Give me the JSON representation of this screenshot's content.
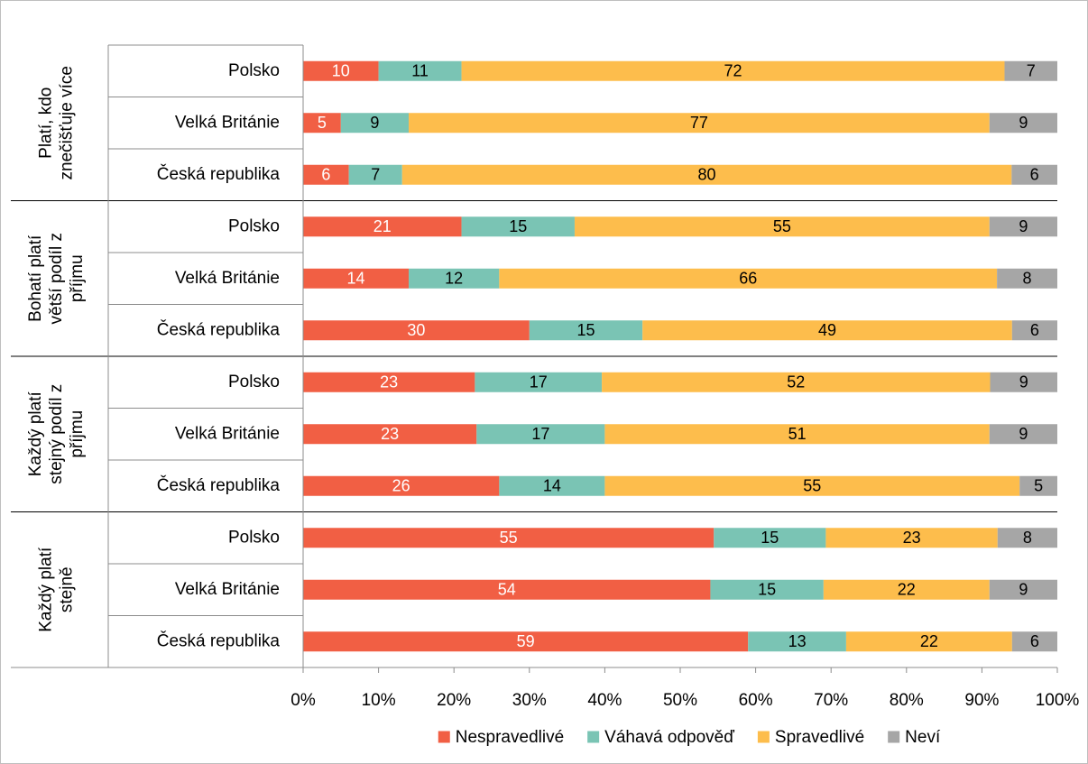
{
  "chart_data": {
    "type": "bar",
    "orientation": "horizontal",
    "stacked": true,
    "percent_scale": true,
    "title": "",
    "xlabel": "",
    "ylabel": "",
    "xlim": [
      0,
      100
    ],
    "x_ticks": [
      "0%",
      "10%",
      "20%",
      "30%",
      "40%",
      "50%",
      "60%",
      "70%",
      "80%",
      "90%",
      "100%"
    ],
    "legend_position": "bottom",
    "grid": false,
    "series": [
      {
        "name": "Nespravedlivé",
        "color": "#f15f44",
        "label_color": "#ffffff"
      },
      {
        "name": "Váhavá odpověď",
        "color": "#7ac4b4",
        "label_color": "#000000"
      },
      {
        "name": "Spravedlivé",
        "color": "#fdbd4c",
        "label_color": "#000000"
      },
      {
        "name": "Neví",
        "color": "#a6a6a6",
        "label_color": "#000000"
      }
    ],
    "groups": [
      {
        "label_lines": [
          "Platí, kdo",
          "znečišťuje více"
        ],
        "rows": [
          {
            "category": "Polsko",
            "values": [
              10,
              11,
              72,
              7
            ]
          },
          {
            "category": "Velká Británie",
            "values": [
              5,
              9,
              77,
              9
            ]
          },
          {
            "category": "Česká republika",
            "values": [
              6,
              7,
              80,
              6
            ]
          }
        ]
      },
      {
        "label_lines": [
          "Bohatí platí",
          "větší podíl z",
          "příjmu"
        ],
        "rows": [
          {
            "category": "Polsko",
            "values": [
              21,
              15,
              55,
              9
            ]
          },
          {
            "category": "Velká Británie",
            "values": [
              14,
              12,
              66,
              8
            ]
          },
          {
            "category": "Česká republika",
            "values": [
              30,
              15,
              49,
              6
            ]
          }
        ]
      },
      {
        "label_lines": [
          "Každý platí",
          "stejný podíl z",
          "příjmu"
        ],
        "rows": [
          {
            "category": "Polsko",
            "values": [
              23,
              17,
              52,
              9
            ]
          },
          {
            "category": "Velká Británie",
            "values": [
              23,
              17,
              51,
              9
            ]
          },
          {
            "category": "Česká republika",
            "values": [
              26,
              14,
              55,
              5
            ]
          }
        ]
      },
      {
        "label_lines": [
          "Každý platí",
          "stejně"
        ],
        "rows": [
          {
            "category": "Polsko",
            "values": [
              55,
              15,
              23,
              8
            ]
          },
          {
            "category": "Velká Británie",
            "values": [
              54,
              15,
              22,
              9
            ]
          },
          {
            "category": "Česká republika",
            "values": [
              59,
              13,
              22,
              6
            ]
          }
        ]
      }
    ]
  }
}
